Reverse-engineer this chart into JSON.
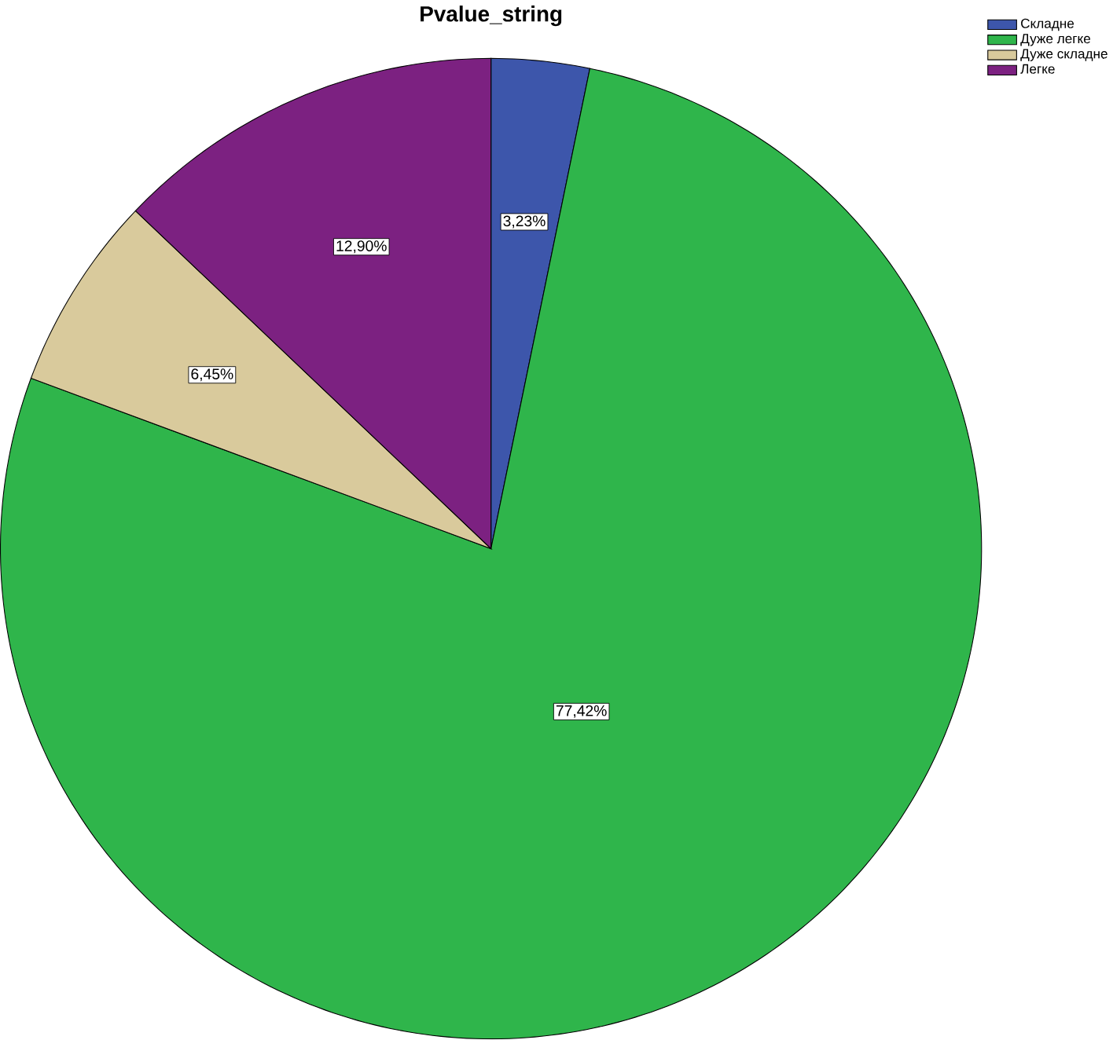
{
  "chart_data": {
    "type": "pie",
    "title": "Pvalue_string",
    "categories": [
      "Складне",
      "Дуже легке",
      "Дуже складне",
      "Легке"
    ],
    "values": [
      3.23,
      77.42,
      6.45,
      12.9
    ],
    "value_labels": [
      "3,23%",
      "77,42%",
      "6,45%",
      "12,90%"
    ],
    "colors": [
      "#3d56ab",
      "#2fb54b",
      "#d9ca9c",
      "#7c2181"
    ],
    "legend": "top right"
  }
}
